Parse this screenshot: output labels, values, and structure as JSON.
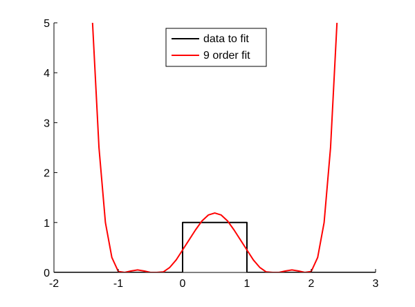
{
  "chart_data": {
    "type": "line",
    "title": "",
    "xlabel": "",
    "ylabel": "",
    "xlim": [
      -2,
      3
    ],
    "ylim": [
      0,
      5
    ],
    "grid": false,
    "legend_position": "top-center",
    "x_ticks": [
      "-2",
      "-1",
      "0",
      "1",
      "2",
      "3"
    ],
    "y_ticks": [
      "0",
      "1",
      "2",
      "3",
      "4",
      "5"
    ],
    "series": [
      {
        "name": "data to fit",
        "color": "#000000",
        "x": [
          -2,
          0,
          0,
          1,
          1,
          3
        ],
        "y": [
          0,
          0,
          1,
          1,
          0,
          0
        ]
      },
      {
        "name": "9 order fit",
        "color": "#ff0000",
        "x": [
          -1.4,
          -1.3,
          -1.2,
          -1.1,
          -1.0,
          -0.9,
          -0.8,
          -0.7,
          -0.6,
          -0.5,
          -0.4,
          -0.3,
          -0.2,
          -0.1,
          0.0,
          0.1,
          0.2,
          0.3,
          0.4,
          0.5,
          0.6,
          0.7,
          0.8,
          0.9,
          1.0,
          1.1,
          1.2,
          1.3,
          1.4,
          1.5,
          1.6,
          1.7,
          1.8,
          1.9,
          2.0,
          2.1,
          2.2,
          2.3,
          2.4
        ],
        "y": [
          5.0,
          2.5,
          1.0,
          0.3,
          0.02,
          0.0,
          0.03,
          0.05,
          0.03,
          0.0,
          0.0,
          0.01,
          0.1,
          0.25,
          0.45,
          0.65,
          0.85,
          1.03,
          1.15,
          1.19,
          1.15,
          1.03,
          0.85,
          0.65,
          0.45,
          0.25,
          0.1,
          0.01,
          0.0,
          0.0,
          0.03,
          0.05,
          0.03,
          0.0,
          0.02,
          0.3,
          1.0,
          2.5,
          5.0
        ]
      }
    ]
  }
}
